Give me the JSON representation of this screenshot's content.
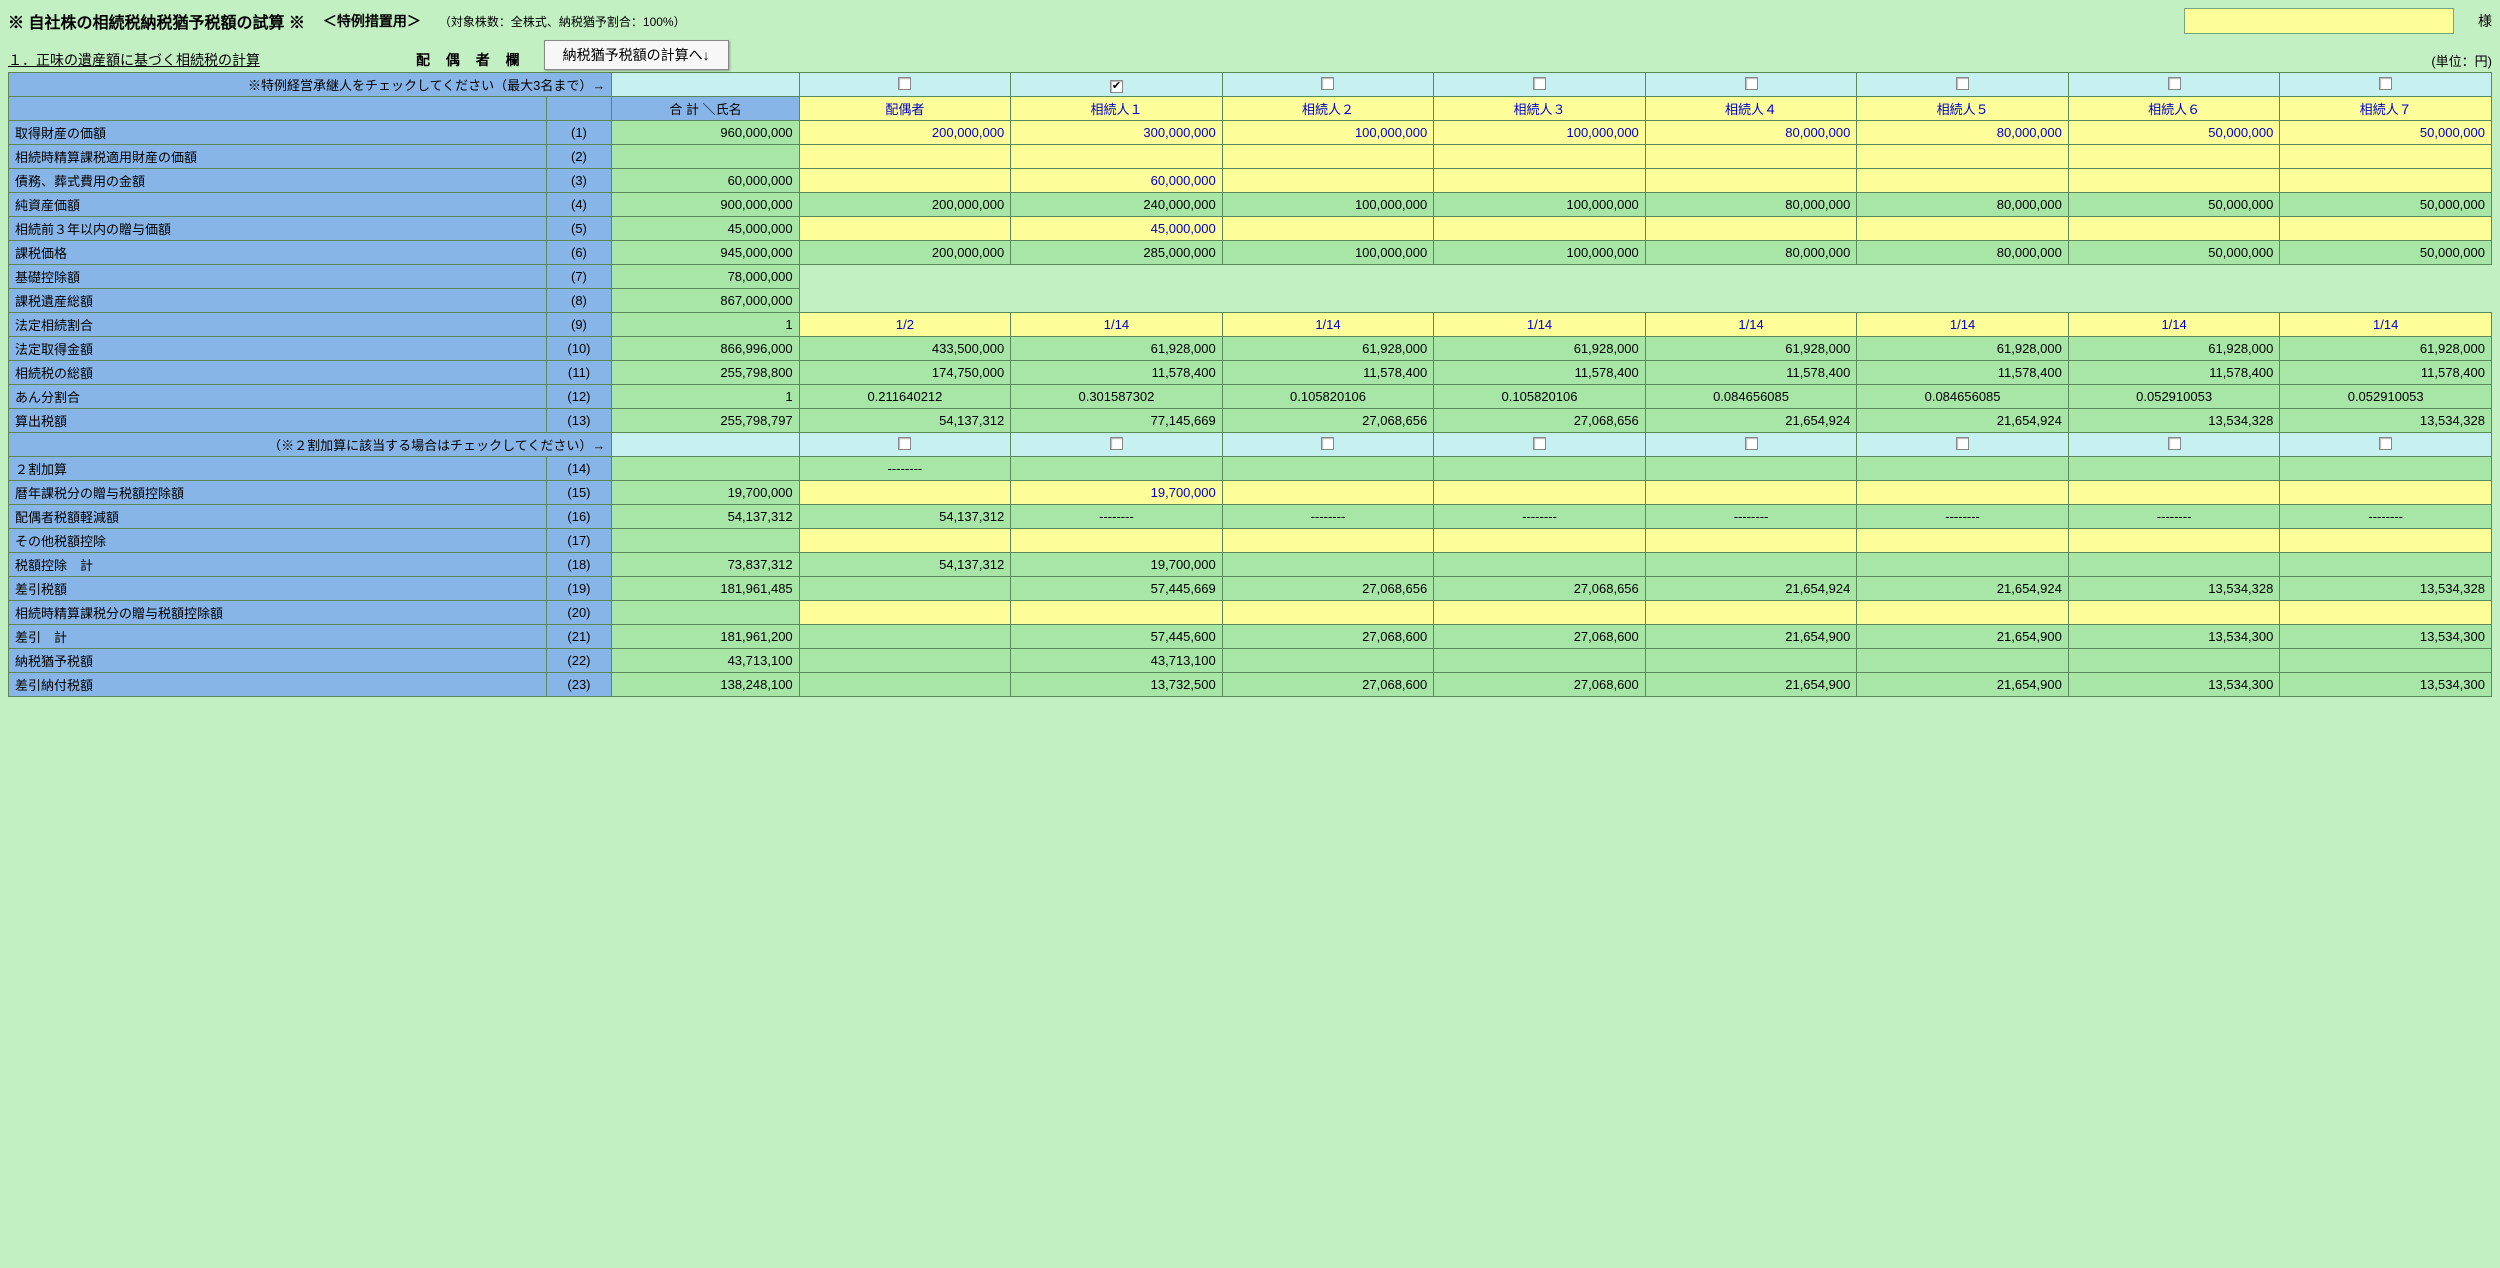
{
  "header": {
    "title": "※ 自社株の相続税納税猶予税額の試算 ※",
    "subtitle": "＜特例措置用＞",
    "note": "（対象株数：全株式、納税猶予割合：100%）",
    "sama": "様",
    "section_label": "１．正味の遺産額に基づく相続税の計算",
    "haigusya_label": "配 偶 者 欄",
    "calc_button": "納税猶予税額の計算へ↓",
    "unit": "(単位：円)"
  },
  "check_instruction": "※特例経営承継人をチェックしてください（最大3名まで）→",
  "surcharge_instruction": "（※２割加算に該当する場合はチェックしてください）→",
  "total_header": "合 計 ＼氏名",
  "heirs": [
    "配偶者",
    "相続人１",
    "相続人２",
    "相続人３",
    "相続人４",
    "相続人５",
    "相続人６",
    "相続人７"
  ],
  "successor_checks": [
    false,
    true,
    false,
    false,
    false,
    false,
    false,
    false
  ],
  "surcharge_checks": [
    false,
    false,
    false,
    false,
    false,
    false,
    false,
    false
  ],
  "rows": [
    {
      "n": "(1)",
      "label": "取得財産の価額",
      "total": "960,000,000",
      "yellow": true,
      "vals": [
        "200,000,000",
        "300,000,000",
        "100,000,000",
        "100,000,000",
        "80,000,000",
        "80,000,000",
        "50,000,000",
        "50,000,000"
      ]
    },
    {
      "n": "(2)",
      "label": "相続時精算課税適用財産の価額",
      "total": "",
      "yellow": true,
      "vals": [
        "",
        "",
        "",
        "",
        "",
        "",
        "",
        ""
      ]
    },
    {
      "n": "(3)",
      "label": "債務、葬式費用の金額",
      "total": "60,000,000",
      "yellow": true,
      "vals": [
        "",
        "60,000,000",
        "",
        "",
        "",
        "",
        "",
        ""
      ]
    },
    {
      "n": "(4)",
      "label": "純資産価額",
      "total": "900,000,000",
      "yellow": false,
      "vals": [
        "200,000,000",
        "240,000,000",
        "100,000,000",
        "100,000,000",
        "80,000,000",
        "80,000,000",
        "50,000,000",
        "50,000,000"
      ]
    },
    {
      "n": "(5)",
      "label": "相続前３年以内の贈与価額",
      "total": "45,000,000",
      "yellow": true,
      "vals": [
        "",
        "45,000,000",
        "",
        "",
        "",
        "",
        "",
        ""
      ]
    },
    {
      "n": "(6)",
      "label": "課税価格",
      "total": "945,000,000",
      "yellow": false,
      "vals": [
        "200,000,000",
        "285,000,000",
        "100,000,000",
        "100,000,000",
        "80,000,000",
        "80,000,000",
        "50,000,000",
        "50,000,000"
      ]
    },
    {
      "n": "(7)",
      "label": "基礎控除額",
      "total": "78,000,000",
      "short": true
    },
    {
      "n": "(8)",
      "label": "課税遺産総額",
      "total": "867,000,000",
      "short": true
    },
    {
      "n": "(9)",
      "label": "法定相続割合",
      "total": "1",
      "yellow": true,
      "center": true,
      "vals": [
        "1/2",
        "1/14",
        "1/14",
        "1/14",
        "1/14",
        "1/14",
        "1/14",
        "1/14"
      ]
    },
    {
      "n": "(10)",
      "label": "法定取得金額",
      "total": "866,996,000",
      "yellow": false,
      "vals": [
        "433,500,000",
        "61,928,000",
        "61,928,000",
        "61,928,000",
        "61,928,000",
        "61,928,000",
        "61,928,000",
        "61,928,000"
      ]
    },
    {
      "n": "(11)",
      "label": "相続税の総額",
      "total": "255,798,800",
      "yellow": false,
      "vals": [
        "174,750,000",
        "11,578,400",
        "11,578,400",
        "11,578,400",
        "11,578,400",
        "11,578,400",
        "11,578,400",
        "11,578,400"
      ]
    },
    {
      "n": "(12)",
      "label": "あん分割合",
      "total": "1",
      "yellow": false,
      "center": true,
      "vals": [
        "0.211640212",
        "0.301587302",
        "0.105820106",
        "0.105820106",
        "0.084656085",
        "0.084656085",
        "0.052910053",
        "0.052910053"
      ]
    },
    {
      "n": "(13)",
      "label": "算出税額",
      "total": "255,798,797",
      "yellow": false,
      "vals": [
        "54,137,312",
        "77,145,669",
        "27,068,656",
        "27,068,656",
        "21,654,924",
        "21,654,924",
        "13,534,328",
        "13,534,328"
      ]
    }
  ],
  "rows2": [
    {
      "n": "(14)",
      "label": "２割加算",
      "total": "",
      "yellow": false,
      "vals": [
        "--------",
        "",
        "",
        "",
        "",
        "",
        "",
        ""
      ],
      "center": true
    },
    {
      "n": "(15)",
      "label": "暦年課税分の贈与税額控除額",
      "total": "19,700,000",
      "yellow": true,
      "vals": [
        "",
        "19,700,000",
        "",
        "",
        "",
        "",
        "",
        ""
      ]
    },
    {
      "n": "(16)",
      "label": "配偶者税額軽減額",
      "total": "54,137,312",
      "yellow": false,
      "vals": [
        "54,137,312",
        "--------",
        "--------",
        "--------",
        "--------",
        "--------",
        "--------",
        "--------"
      ],
      "dash_center": true
    },
    {
      "n": "(17)",
      "label": "その他税額控除",
      "total": "",
      "yellow": true,
      "vals": [
        "",
        "",
        "",
        "",
        "",
        "",
        "",
        ""
      ]
    },
    {
      "n": "(18)",
      "label": "税額控除　計",
      "total": "73,837,312",
      "yellow": false,
      "vals": [
        "54,137,312",
        "19,700,000",
        "",
        "",
        "",
        "",
        "",
        ""
      ]
    },
    {
      "n": "(19)",
      "label": "差引税額",
      "total": "181,961,485",
      "yellow": false,
      "vals": [
        "",
        "57,445,669",
        "27,068,656",
        "27,068,656",
        "21,654,924",
        "21,654,924",
        "13,534,328",
        "13,534,328"
      ]
    },
    {
      "n": "(20)",
      "label": "相続時精算課税分の贈与税額控除額",
      "total": "",
      "yellow": true,
      "vals": [
        "",
        "",
        "",
        "",
        "",
        "",
        "",
        ""
      ]
    },
    {
      "n": "(21)",
      "label": "差引　計",
      "total": "181,961,200",
      "yellow": false,
      "vals": [
        "",
        "57,445,600",
        "27,068,600",
        "27,068,600",
        "21,654,900",
        "21,654,900",
        "13,534,300",
        "13,534,300"
      ]
    },
    {
      "n": "(22)",
      "label": "納税猶予税額",
      "total": "43,713,100",
      "yellow": false,
      "vals": [
        "",
        "43,713,100",
        "",
        "",
        "",
        "",
        "",
        ""
      ]
    },
    {
      "n": "(23)",
      "label": "差引納付税額",
      "total": "138,248,100",
      "yellow": false,
      "vals": [
        "",
        "13,732,500",
        "27,068,600",
        "27,068,600",
        "21,654,900",
        "21,654,900",
        "13,534,300",
        "13,534,300"
      ]
    }
  ]
}
